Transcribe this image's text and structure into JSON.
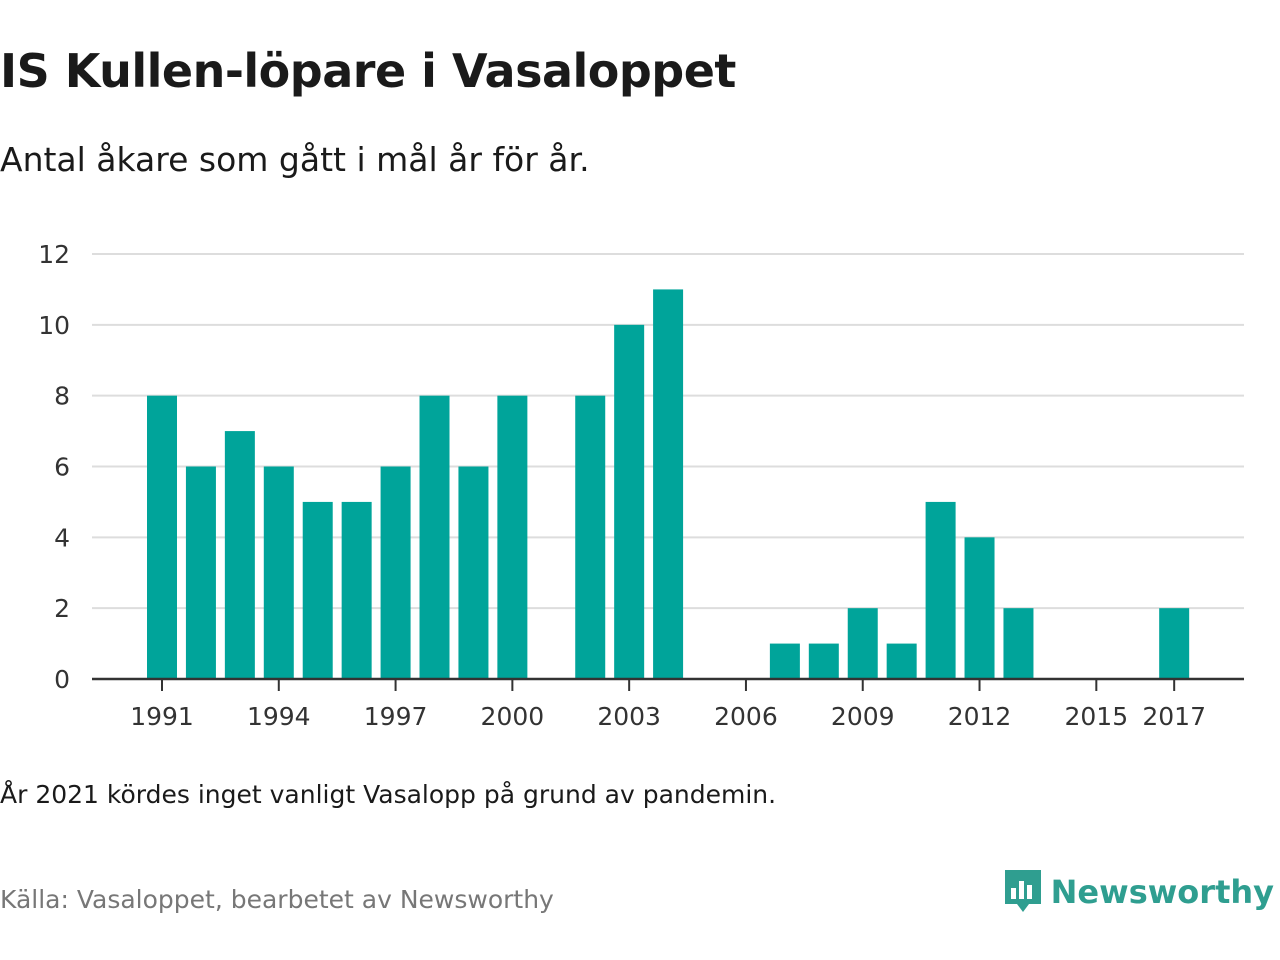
{
  "title": "IS Kullen-löpare i Vasaloppet",
  "subtitle": "Antal åkare som gått i mål år för år.",
  "note": "År 2021 kördes inget vanligt Vasalopp på grund av pandemin.",
  "source": "Källa: Vasaloppet, bearbetet av Newsworthy",
  "brand": {
    "name": "Newsworthy",
    "icon": "newsworthy-logo-icon",
    "color": "#2f9e90"
  },
  "colors": {
    "bar": "#00a49a",
    "grid": "#dddddd",
    "axis": "#333333"
  },
  "chart_data": {
    "type": "bar",
    "title": "IS Kullen-löpare i Vasaloppet",
    "subtitle": "Antal åkare som gått i mål år för år.",
    "xlabel": "",
    "ylabel": "",
    "categories": [
      1991,
      1992,
      1993,
      1994,
      1995,
      1996,
      1997,
      1998,
      1999,
      2000,
      2001,
      2002,
      2003,
      2004,
      2005,
      2006,
      2007,
      2008,
      2009,
      2010,
      2011,
      2012,
      2013,
      2014,
      2015,
      2016,
      2017
    ],
    "values": [
      8,
      6,
      7,
      6,
      5,
      5,
      6,
      8,
      6,
      8,
      0,
      8,
      10,
      11,
      0,
      0,
      1,
      1,
      2,
      1,
      5,
      4,
      2,
      0,
      0,
      0,
      2
    ],
    "xticks": [
      "1991",
      "1994",
      "1997",
      "2000",
      "2003",
      "2006",
      "2009",
      "2012",
      "2015",
      "2017"
    ],
    "yticks": [
      "0",
      "2",
      "4",
      "6",
      "8",
      "10",
      "12"
    ],
    "ylim": [
      0,
      12
    ],
    "grid": true,
    "legend": false
  }
}
